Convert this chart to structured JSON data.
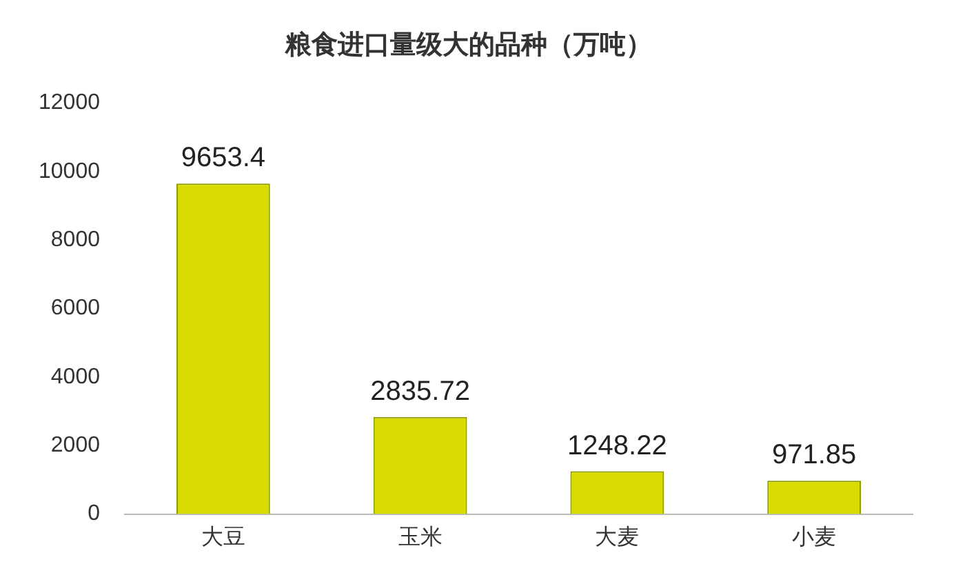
{
  "chart_data": {
    "type": "bar",
    "title": "粮食进口量级大的品种（万吨）",
    "categories": [
      "大豆",
      "玉米",
      "大麦",
      "小麦"
    ],
    "values": [
      9653.4,
      2835.72,
      1248.22,
      971.85
    ],
    "value_labels": [
      "9653.4",
      "2835.72",
      "1248.22",
      "971.85"
    ],
    "color": "#d8dc00",
    "ylim": [
      0,
      12000
    ],
    "yticks": [
      0,
      2000,
      4000,
      6000,
      8000,
      10000,
      12000
    ],
    "grid": false,
    "legend": false
  }
}
